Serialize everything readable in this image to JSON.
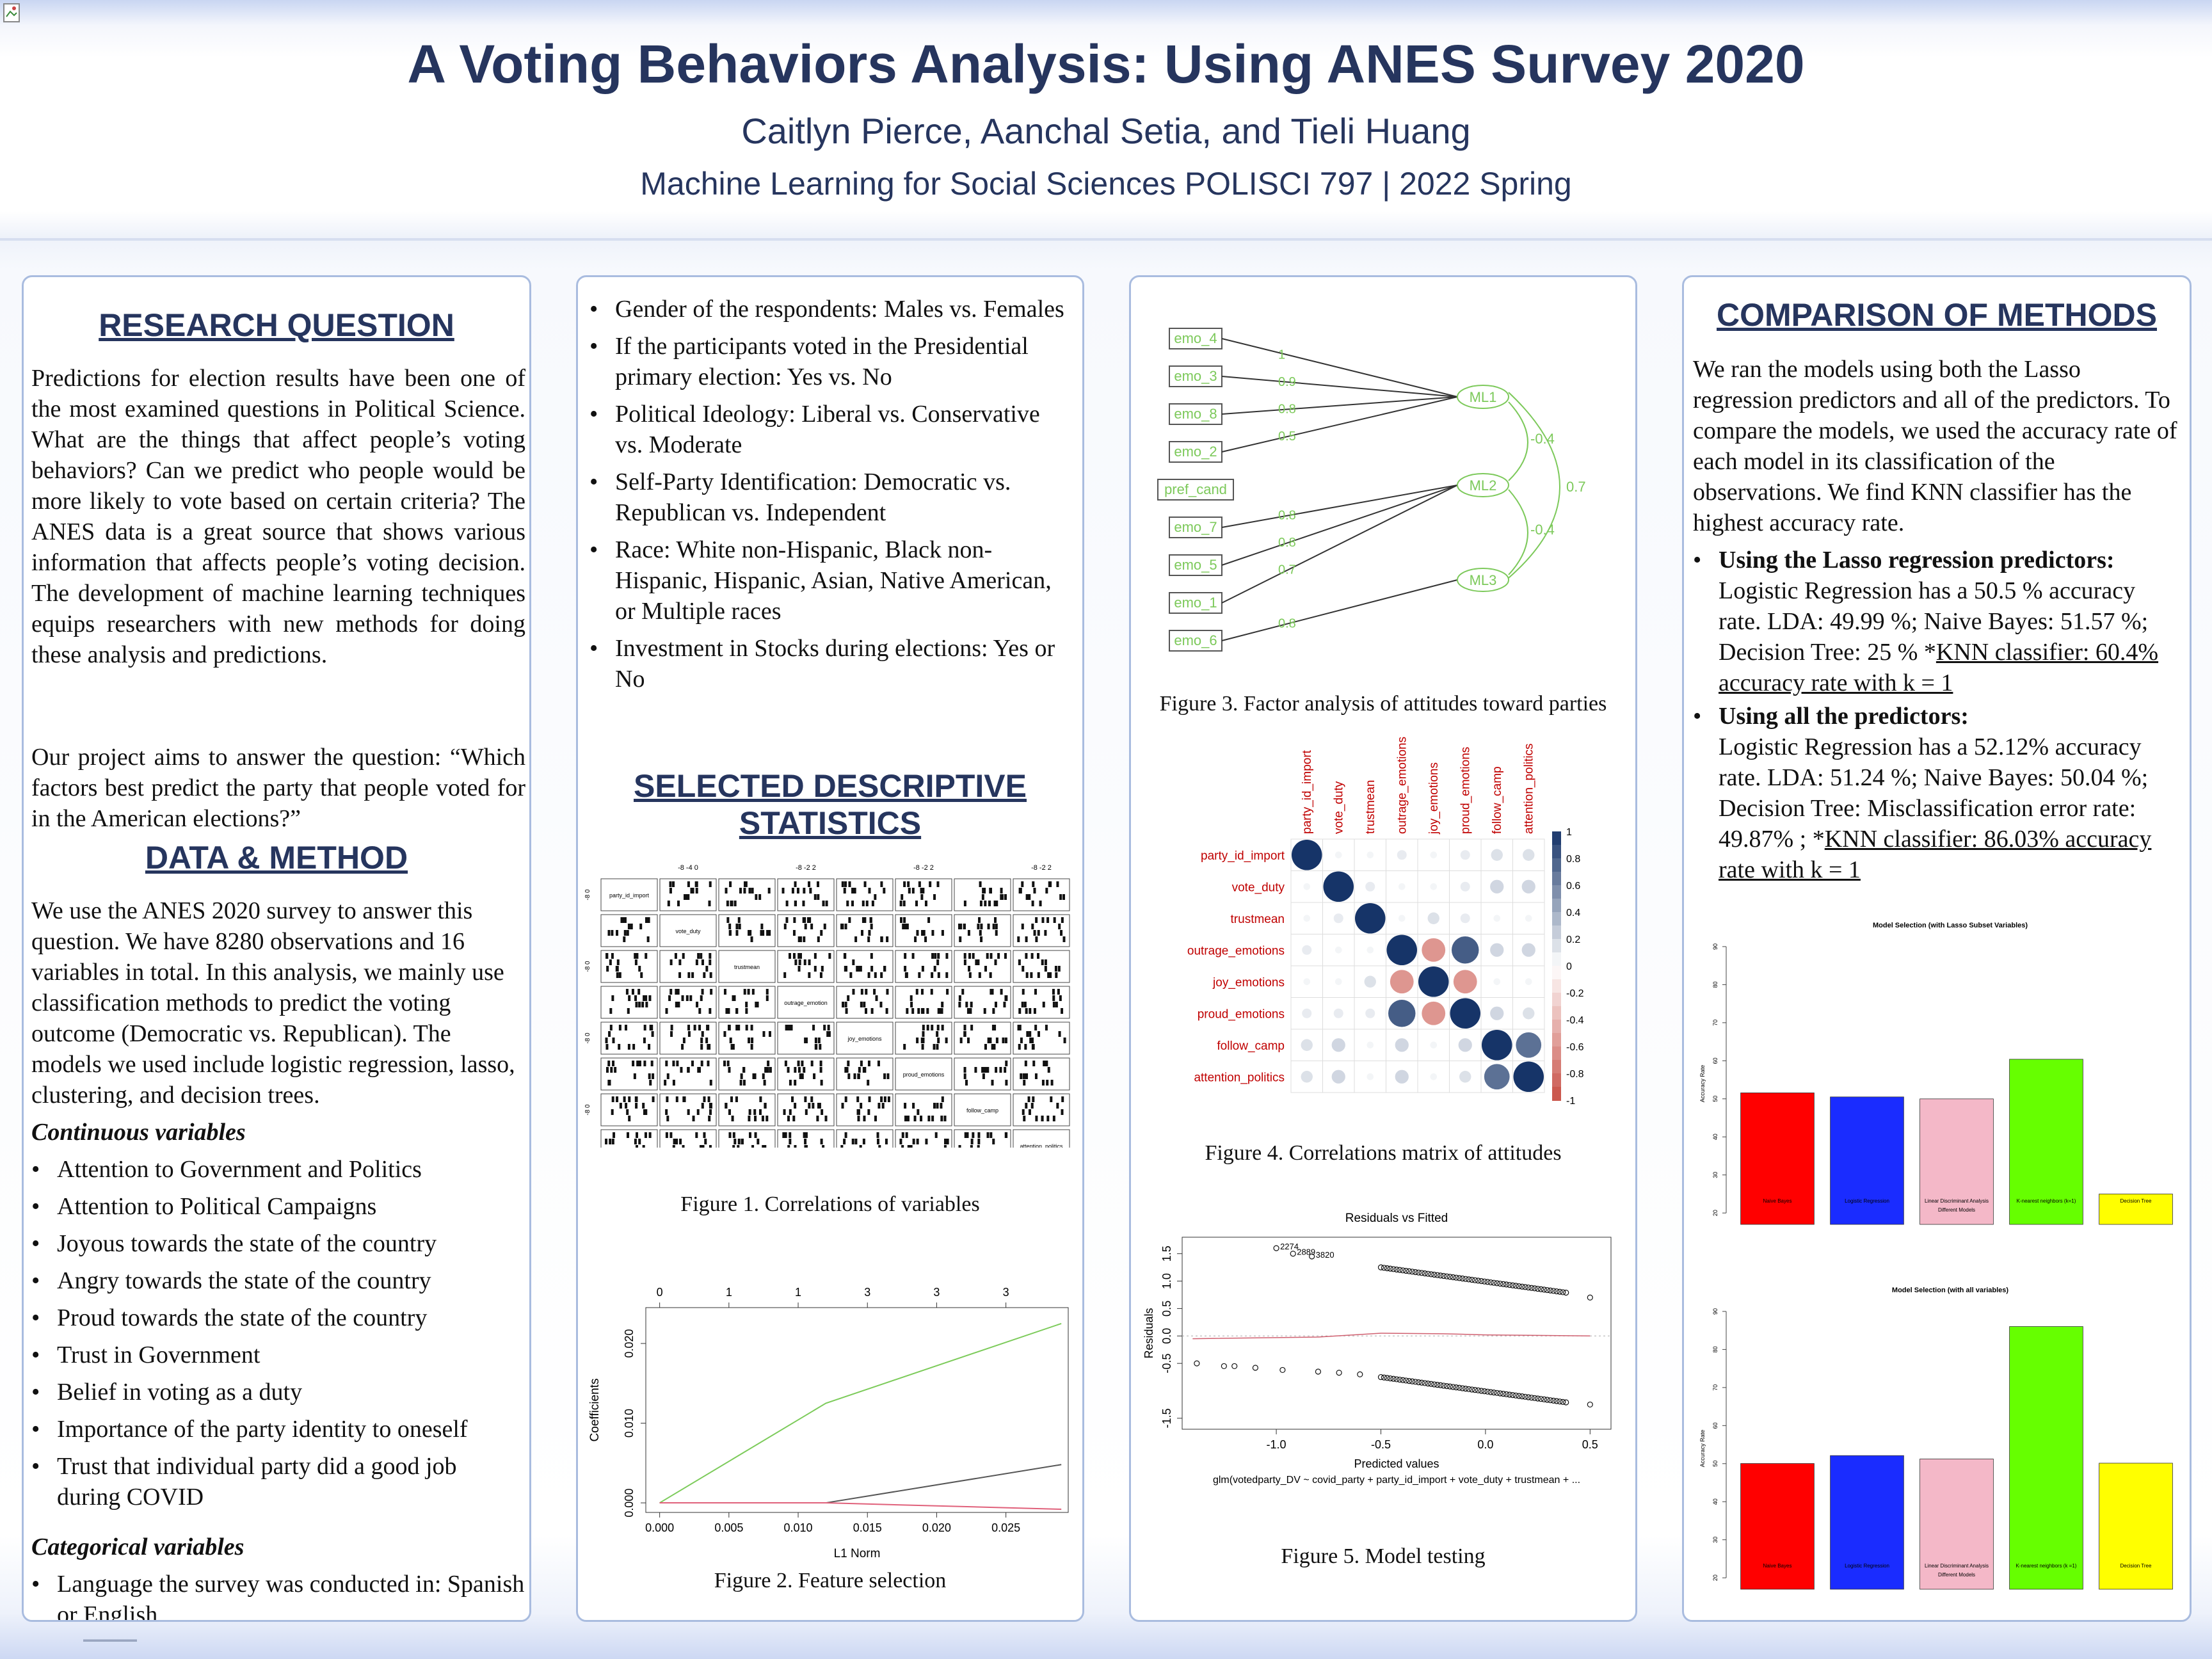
{
  "header": {
    "title": "A Voting Behaviors Analysis: Using ANES Survey 2020",
    "authors": "Caitlyn Pierce, Aanchal Setia, and Tieli Huang",
    "course": "Machine Learning for Social Sciences POLISCI 797 | 2022 Spring"
  },
  "research": {
    "title": "RESEARCH QUESTION",
    "p1": "Predictions for election results have been one of the most examined questions in Political Science. What are the things that affect people’s voting behaviors? Can we predict who people would be more likely to vote based on certain criteria? The ANES data is a great source that shows various information that affects people’s voting decision. The development of machine learning techniques equips researchers with new methods for doing these analysis and predictions.",
    "p2": "Our project aims to answer the question: “Which factors best predict the party that people voted for in the American elections?”"
  },
  "data_method": {
    "title": "DATA & METHOD",
    "p1": "We use the ANES 2020 survey to answer this question. We have 8280 observations and 16 variables in total. In this analysis, we mainly use classification methods to predict the voting outcome (Democratic vs. Republican). The models we used include logistic regression, lasso, clustering, and decision trees.",
    "continuous_title": "Continuous variables",
    "continuous": [
      "Attention to Government and Politics",
      "Attention to Political Campaigns",
      "Joyous towards the state of the country",
      "Angry towards the state of the country",
      "Proud towards the state of the country",
      "Trust in Government",
      "Belief in voting as a duty",
      "Importance of the party identity  to oneself",
      "Trust that individual party did a good job during COVID"
    ],
    "categorical_title": "Categorical variables",
    "categorical": [
      "Language the survey was conducted in: Spanish or English.",
      "Gender of the respondents: Males vs.  Females",
      "If the participants voted in the Presidential primary election: Yes vs. No",
      "Political Ideology: Liberal vs. Conservative vs. Moderate",
      "Self-Party Identification: Democratic vs. Republican vs. Independent",
      "Race: White non-Hispanic, Black non-Hispanic, Hispanic, Asian, Native American, or Multiple races",
      "Investment in Stocks during elections: Yes or No"
    ]
  },
  "descriptive": {
    "title": "SELECTED DESCRIPTIVE STATISTICS",
    "fig1_caption": "Figure 1. Correlations of variables",
    "fig2_caption": "Figure 2. Feature selection"
  },
  "figure3": {
    "caption": "Figure 3. Factor analysis of attitudes toward parties",
    "indicators": [
      "emo_4",
      "emo_3",
      "emo_8",
      "emo_2",
      "pref_cand",
      "emo_7",
      "emo_5",
      "emo_1",
      "emo_6"
    ],
    "factors": [
      "ML1",
      "ML2",
      "ML3"
    ],
    "loadings": [
      "1",
      "0.9",
      "0.8",
      "0.5",
      "0.8",
      "0.8",
      "0.7",
      "0.8"
    ],
    "factor_correlations": [
      "-0.4",
      "0.7",
      "-0.4"
    ]
  },
  "figure4": {
    "caption": "Figure 4. Correlations matrix of attitudes",
    "variables": [
      "party_id_import",
      "vote_duty",
      "trustmean",
      "outrage_emotions",
      "joy_emotions",
      "proud_emotions",
      "follow_camp",
      "attention_politics"
    ],
    "scale_labels": [
      "1",
      "0.8",
      "0.6",
      "0.4",
      "0.2",
      "0",
      "-0.2",
      "-0.4",
      "-0.6",
      "-0.8",
      "-1"
    ],
    "matrix": [
      [
        1,
        0.05,
        0.05,
        0.1,
        0.05,
        0.1,
        0.15,
        0.15
      ],
      [
        0.05,
        1,
        0.1,
        0.05,
        0.05,
        0.1,
        0.2,
        0.2
      ],
      [
        0.05,
        0.1,
        1,
        0.05,
        0.15,
        0.1,
        0.05,
        0.05
      ],
      [
        0.1,
        0.05,
        0.05,
        1,
        -0.6,
        0.8,
        0.2,
        0.2
      ],
      [
        0.05,
        0.05,
        0.15,
        -0.6,
        1,
        -0.6,
        0.05,
        0.05
      ],
      [
        0.1,
        0.1,
        0.1,
        0.8,
        -0.6,
        1,
        0.2,
        0.15
      ],
      [
        0.15,
        0.2,
        0.05,
        0.2,
        0.05,
        0.2,
        1,
        0.7
      ],
      [
        0.15,
        0.2,
        0.05,
        0.2,
        0.05,
        0.15,
        0.7,
        1
      ]
    ]
  },
  "figure5": {
    "caption": "Figure 5. Model testing",
    "title": "Residuals vs Fitted",
    "xlabel": "Predicted values",
    "ylabel": "Residuals",
    "subtitle": "glm(votedparty_DV ~ covid_party + party_id_import + vote_duty + trustmean + ...",
    "xticks": [
      "-1.0",
      "-0.5",
      "0.0",
      "0.5"
    ],
    "yticks": [
      "-1.5",
      "-0.5",
      "0.0",
      "0.5",
      "1.0",
      "1.5"
    ],
    "labels": [
      "2274",
      "2889",
      "3820"
    ]
  },
  "comparison": {
    "title": "COMPARISON OF METHODS",
    "intro": "We ran the models using both the Lasso regression predictors and all of the predictors. To compare the models, we used the accuracy rate of each model in its classification of the observations. We find KNN classifier has the highest accuracy rate.",
    "lasso_head": "Using the Lasso regression predictors:",
    "lasso_text": "Logistic Regression has a 50.5 % accuracy rate. LDA: 49.99 %; Naive Bayes: 51.57 %; Decision Tree: 25 % *",
    "lasso_knn": "KNN classifier: 60.4% accuracy rate with k = 1",
    "all_head": "Using all the predictors:",
    "all_text": "Logistic Regression has a 52.12% accuracy rate. LDA: 51.24 %; Naive Bayes: 50.04 %; Decision Tree: Misclassification error rate: 49.87% ; *",
    "all_knn": "KNN classifier: 86.03% accuracy rate with k = 1"
  },
  "chart_data": [
    {
      "type": "bar",
      "title": "Model Selection (with Lasso Subset Variables)",
      "xlabel": "Different Models",
      "ylabel": "Accuracy Rate",
      "categories": [
        "Naive Bayes",
        "Logistic Regression",
        "Linear Discriminant Analysis",
        "K-nearest neighbors (k=1)",
        "Decision Tree"
      ],
      "values": [
        51.57,
        50.5,
        49.99,
        60.4,
        25
      ],
      "colors": [
        "#ff0000",
        "#1a2cff",
        "#f4b8c8",
        "#66ff00",
        "#ffff00"
      ],
      "yticks": [
        20,
        30,
        40,
        50,
        60,
        70,
        80,
        90
      ],
      "ylim": [
        17,
        91
      ]
    },
    {
      "type": "bar",
      "title": "Model Selection (with all variables)",
      "xlabel": "Different Models",
      "ylabel": "Accuracy Rate",
      "categories": [
        "Naive Bayes",
        "Logistic Regression",
        "Linear Discriminant Analysis",
        "K-nearest neighbors (k =1)",
        "Decision Tree"
      ],
      "values": [
        50.04,
        52.12,
        51.24,
        86.03,
        50.13
      ],
      "colors": [
        "#ff0000",
        "#1a2cff",
        "#f4b8c8",
        "#66ff00",
        "#ffff00"
      ],
      "yticks": [
        20,
        30,
        40,
        50,
        60,
        70,
        80,
        90
      ],
      "ylim": [
        17,
        91
      ]
    },
    {
      "type": "line",
      "title": "",
      "xlabel": "L1 Norm",
      "ylabel": "Coefficients",
      "xticks": [
        "0.000",
        "0.005",
        "0.010",
        "0.015",
        "0.020",
        "0.025"
      ],
      "yticks": [
        "0.000",
        "0.010",
        "0.020"
      ],
      "top_ticks": [
        "0",
        "1",
        "1",
        "3",
        "3",
        "3"
      ],
      "series": [
        {
          "x": [
            0,
            0.012,
            0.029
          ],
          "y": [
            0,
            0.0125,
            0.0225
          ],
          "color": "#7ccb5a"
        },
        {
          "x": [
            0,
            0.012,
            0.029
          ],
          "y": [
            0,
            0,
            0.0048
          ],
          "color": "#555555"
        },
        {
          "x": [
            0,
            0.012,
            0.029
          ],
          "y": [
            0,
            0,
            -0.0008
          ],
          "color": "#e0607a"
        }
      ],
      "xlim": [
        -0.001,
        0.0295
      ],
      "ylim": [
        -0.0012,
        0.0245
      ]
    }
  ],
  "scatter_matrix_vars": [
    "party_id_import",
    "vote_duty",
    "trustmean",
    "outrage_emotion",
    "joy_emotions",
    "proud_emotions",
    "follow_camp",
    "attention_politics"
  ]
}
